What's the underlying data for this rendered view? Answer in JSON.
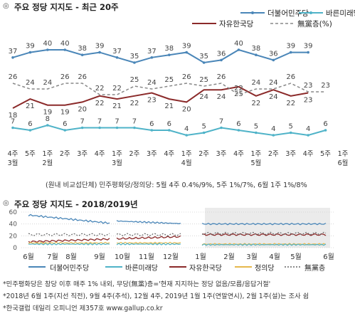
{
  "chart_data": [
    {
      "type": "line",
      "title": "주요 정당 지지도 - 최근 20주",
      "categories": [
        "4주\n3월",
        "5주",
        "1주\n2월",
        "2주",
        "3주",
        "4주",
        "1주\n3월",
        "2주",
        "3주",
        "4주",
        "1주\n4월",
        "2주",
        "3주",
        "4주",
        "1주\n5월",
        "2주",
        "3주",
        "4주",
        "5주",
        "1주\n6월"
      ],
      "series": [
        {
          "name": "더불어민주당",
          "color": "#4a86b8",
          "values": [
            37,
            39,
            40,
            40,
            38,
            39,
            37,
            35,
            37,
            38,
            39,
            35,
            36,
            40,
            38,
            36,
            39,
            39,
            null,
            null
          ]
        },
        {
          "name": "바른미래당",
          "color": "#4fb3c8",
          "values": [
            7,
            6,
            8,
            6,
            7,
            7,
            7,
            7,
            6,
            6,
            4,
            5,
            7,
            6,
            5,
            4,
            5,
            4,
            6,
            null
          ]
        },
        {
          "name": "자유한국당",
          "color": "#8b2a2a",
          "values": [
            18,
            21,
            19,
            19,
            20,
            22,
            21,
            22,
            23,
            21,
            20,
            24,
            24,
            25,
            22,
            24,
            22,
            23,
            null,
            null
          ]
        },
        {
          "name": "無黨층(%)",
          "color": "#888888",
          "values": [
            26,
            24,
            24,
            26,
            26,
            22,
            22,
            25,
            24,
            25,
            26,
            25,
            26,
            22,
            24,
            24,
            26,
            23,
            23,
            null
          ]
        }
      ],
      "data_labels": {
        "dem": [
          "37",
          "39",
          "40",
          "40",
          "38",
          "39",
          "37",
          "35",
          "37",
          "38",
          "39",
          "35",
          "36",
          "40",
          "38",
          "36",
          "39",
          "39"
        ],
        "bareun": [
          "7",
          "6",
          "8",
          "6",
          "7",
          "7",
          "7",
          "7",
          "6",
          "6",
          "4",
          "5",
          "7",
          "6",
          "5",
          "4",
          "5",
          "4",
          "6"
        ],
        "jayu": [
          "18",
          "21",
          "19",
          "19",
          "20",
          "22",
          "21",
          "22",
          "23",
          "21",
          "20",
          "24",
          "24",
          "25",
          "22",
          "24",
          "22",
          "23"
        ],
        "indep": [
          "26",
          "24",
          "24",
          "26",
          "26",
          "22",
          "22",
          "25",
          "24",
          "25",
          "26",
          "25",
          "26",
          "22",
          "24",
          "24",
          "26",
          "23",
          "23"
        ]
      },
      "legend": [
        "더불어민주당",
        "바른미래당",
        "자유한국당",
        "無黨층(%)"
      ],
      "footnote": "(원내 비교섭단체) 민주평화당/정의당: 5월 4주 0.4%/9%, 5주 1%/7%, 6월 1주 1%/8%"
    },
    {
      "type": "line",
      "title": "주요 정당 지지도 - 2018/2019년",
      "y_ticks": [
        "60",
        "40",
        "20",
        "0"
      ],
      "ylim": [
        0,
        60
      ],
      "x_ticks": [
        "6월",
        "7월",
        "8월",
        "9월",
        "10월",
        "11월",
        "12월",
        "1월",
        "2월",
        "3월",
        "4월",
        "5월",
        "6월"
      ],
      "series": [
        {
          "name": "더불어민주당",
          "color": "#4a86b8"
        },
        {
          "name": "바른미래당",
          "color": "#4fb3c8"
        },
        {
          "name": "자유한국당",
          "color": "#8b2a2a"
        },
        {
          "name": "정의당",
          "color": "#e6b84c"
        },
        {
          "name": "無黨층",
          "color": "#666666"
        }
      ]
    }
  ],
  "notes": [
    "*민주평화당은 창당 이후 매주 1% 내외, 무당(無黨)층='현재 지지하는 정당 없음/모름/응답거절'",
    "*2018년 6월 1주(지선 직전), 9월 4주(추석), 12월 4주, 2019년 1월 1주(연말연시), 2월 1주(설)는 조사 쉼",
    "*한국갤럽 데일리 오피니언 제357호 www.gallup.co.kr"
  ],
  "bullet_glyph": "◎"
}
